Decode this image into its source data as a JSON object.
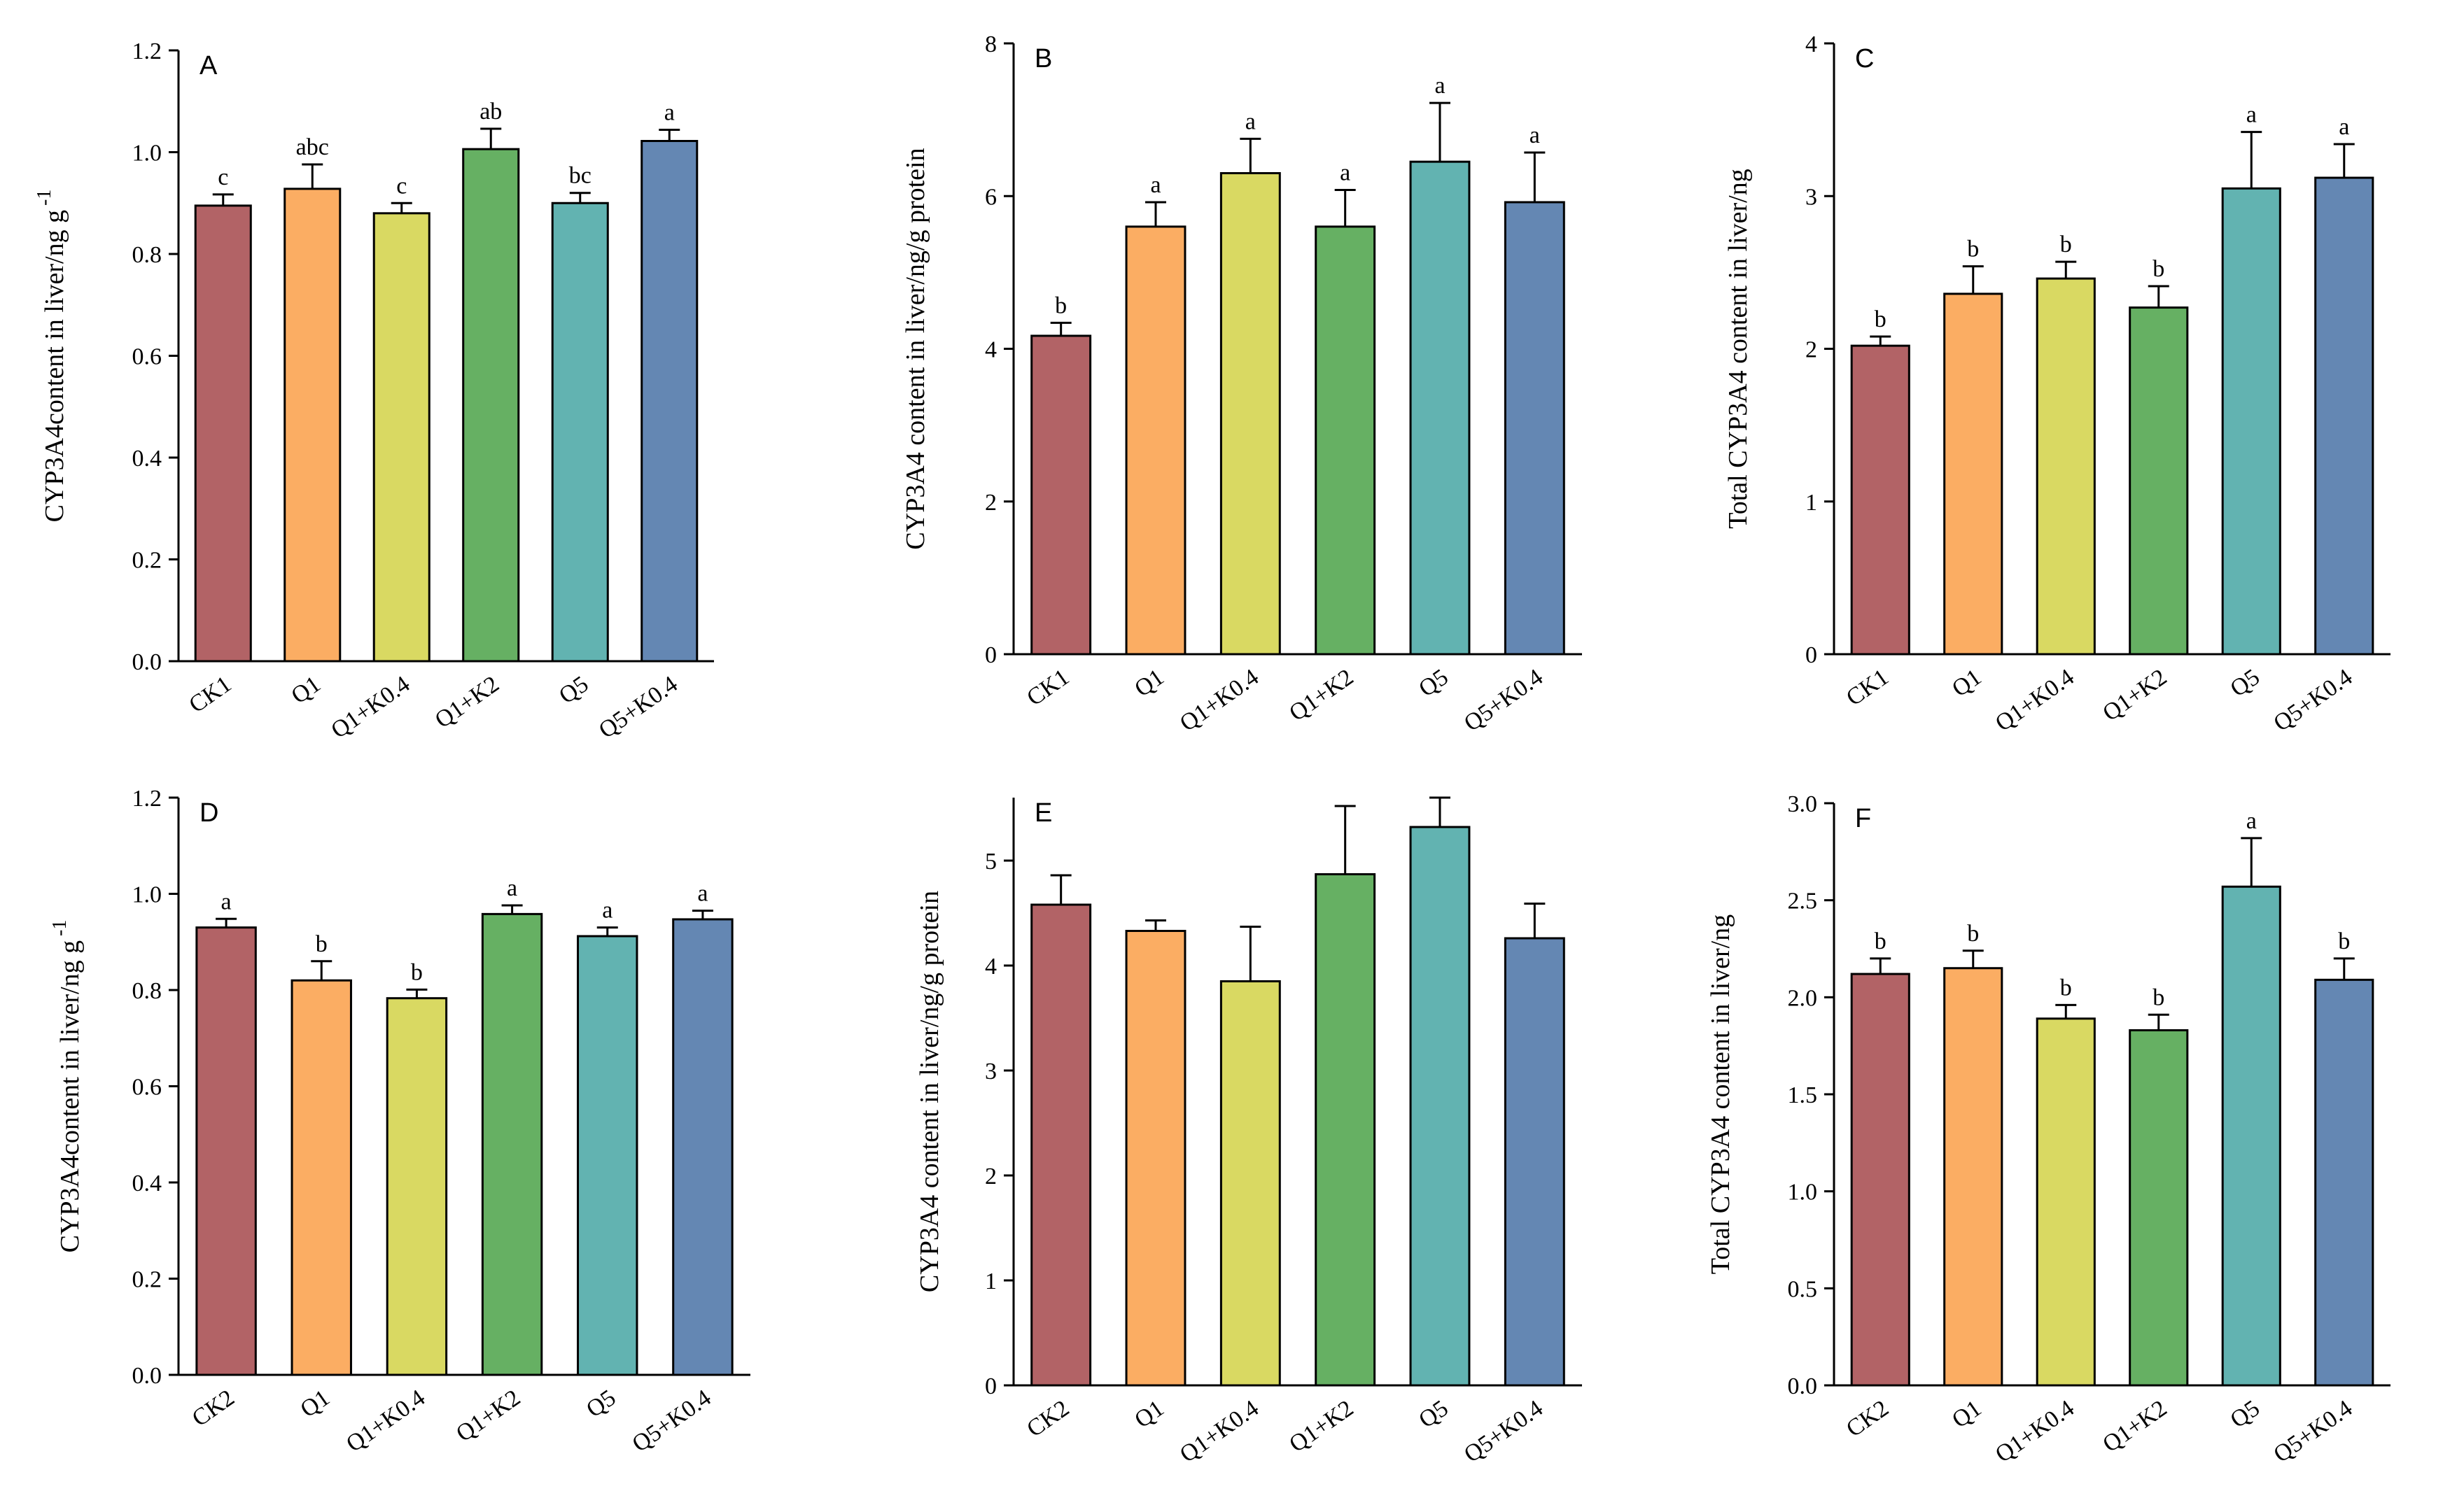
{
  "colors": [
    "#b26366",
    "#fbad63",
    "#d9d962",
    "#66b063",
    "#62b3b1",
    "#6487b3"
  ],
  "chart_data": [
    {
      "type": "bar",
      "panel": "A",
      "ylabel": "CYP3A4content in liver/ng g",
      "ylabel_sup": "-1",
      "ylim": [
        0,
        1.2
      ],
      "yticks": [
        "0.0",
        "0.2",
        "0.4",
        "0.6",
        "0.8",
        "1.0",
        "1.2"
      ],
      "categories": [
        "CK1",
        "Q1",
        "Q1+K0.4",
        "Q1+K2",
        "Q5",
        "Q5+K0.4"
      ],
      "values": [
        0.895,
        0.928,
        0.88,
        1.006,
        0.9,
        1.022
      ],
      "errors": [
        0.022,
        0.048,
        0.02,
        0.04,
        0.02,
        0.022
      ],
      "labels": [
        "c",
        "abc",
        "c",
        "ab",
        "bc",
        "a"
      ]
    },
    {
      "type": "bar",
      "panel": "B",
      "ylabel": "CYP3A4 content in liver/ng/g protein",
      "ylabel_sup": "",
      "ylim": [
        0,
        8
      ],
      "yticks": [
        "0",
        "2",
        "4",
        "6",
        "8"
      ],
      "categories": [
        "CK1",
        "Q1",
        "Q1+K0.4",
        "Q1+K2",
        "Q5",
        "Q5+K0.4"
      ],
      "values": [
        4.17,
        5.6,
        6.3,
        5.6,
        6.45,
        5.92
      ],
      "errors": [
        0.17,
        0.32,
        0.45,
        0.48,
        0.77,
        0.65
      ],
      "labels": [
        "b",
        "a",
        "a",
        "a",
        "a",
        "a"
      ]
    },
    {
      "type": "bar",
      "panel": "C",
      "ylabel": "Total CYP3A4 content in liver/ng",
      "ylabel_sup": "",
      "ylim": [
        0,
        4
      ],
      "yticks": [
        "0",
        "1",
        "2",
        "3",
        "4"
      ],
      "categories": [
        "CK1",
        "Q1",
        "Q1+K0.4",
        "Q1+K2",
        "Q5",
        "Q5+K0.4"
      ],
      "values": [
        2.02,
        2.36,
        2.46,
        2.27,
        3.05,
        3.12
      ],
      "errors": [
        0.06,
        0.18,
        0.11,
        0.14,
        0.37,
        0.22
      ],
      "labels": [
        "b",
        "b",
        "b",
        "b",
        "a",
        "a"
      ]
    },
    {
      "type": "bar",
      "panel": "D",
      "ylabel": "CYP3A4content in liver/ng g",
      "ylabel_sup": "-1",
      "ylim": [
        0,
        1.2
      ],
      "yticks": [
        "0.0",
        "0.2",
        "0.4",
        "0.6",
        "0.8",
        "1.0",
        "1.2"
      ],
      "categories": [
        "CK2",
        "Q1",
        "Q1+K0.4",
        "Q1+K2",
        "Q5",
        "Q5+K0.4"
      ],
      "values": [
        0.93,
        0.82,
        0.783,
        0.958,
        0.912,
        0.947
      ],
      "errors": [
        0.018,
        0.04,
        0.018,
        0.018,
        0.018,
        0.018
      ],
      "labels": [
        "a",
        "b",
        "b",
        "a",
        "a",
        "a"
      ]
    },
    {
      "type": "bar",
      "panel": "E",
      "ylabel": "CYP3A4 content in liver/ng/g protein",
      "ylabel_sup": "",
      "ylim": [
        0,
        5.6
      ],
      "yticks": [
        "0",
        "1",
        "2",
        "3",
        "4",
        "5"
      ],
      "categories": [
        "CK2",
        "Q1",
        "Q1+K0.4",
        "Q1+K2",
        "Q5",
        "Q5+K0.4"
      ],
      "values": [
        4.58,
        4.33,
        3.85,
        4.87,
        5.32,
        4.26
      ],
      "errors": [
        0.28,
        0.1,
        0.52,
        0.65,
        0.28,
        0.33
      ],
      "labels": [
        "",
        "",
        "",
        "",
        "",
        ""
      ]
    },
    {
      "type": "bar",
      "panel": "F",
      "ylabel": "Total CYP3A4 content in liver/ng",
      "ylabel_sup": "",
      "ylim": [
        0,
        3.0
      ],
      "yticks": [
        "0.0",
        "0.5",
        "1.0",
        "1.5",
        "2.0",
        "2.5",
        "3.0"
      ],
      "categories": [
        "CK2",
        "Q1",
        "Q1+K0.4",
        "Q1+K2",
        "Q5",
        "Q5+K0.4"
      ],
      "values": [
        2.12,
        2.15,
        1.89,
        1.83,
        2.57,
        2.09
      ],
      "errors": [
        0.08,
        0.09,
        0.07,
        0.08,
        0.25,
        0.11
      ],
      "labels": [
        "b",
        "b",
        "b",
        "b",
        "a",
        "b"
      ]
    }
  ]
}
